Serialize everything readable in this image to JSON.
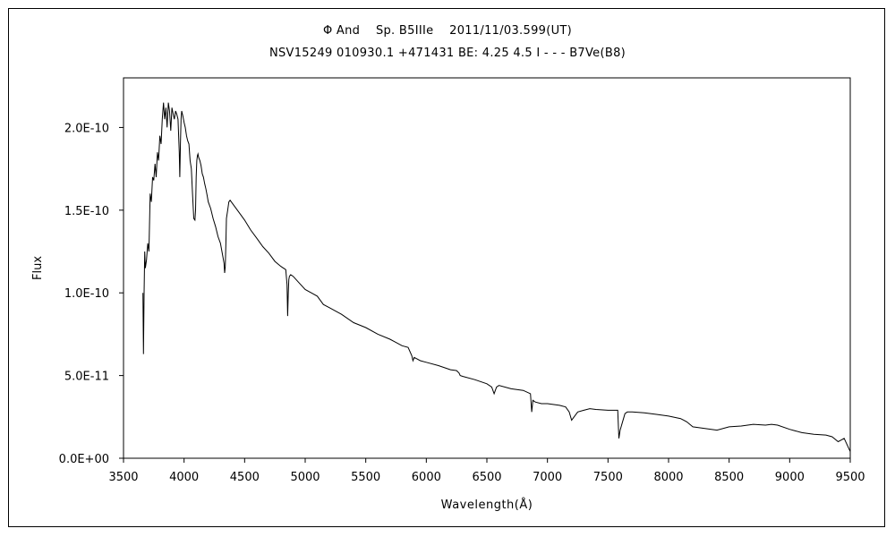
{
  "chart_data": {
    "type": "line",
    "title": "Φ And    Sp. B5IIIe    2011/11/03.599(UT)",
    "subtitle": "NSV15249 010930.1 +471431 BE: 4.25 4.5 I - - - B7Ve(B8)",
    "xlabel": "Wavelength(Å)",
    "ylabel": "Flux",
    "xlim": [
      3500,
      9500
    ],
    "ylim": [
      0,
      2.3e-10
    ],
    "x_ticks": [
      3500,
      4000,
      4500,
      5000,
      5500,
      6000,
      6500,
      7000,
      7500,
      8000,
      8500,
      9000,
      9500
    ],
    "x_tick_labels": [
      "3500",
      "4000",
      "4500",
      "5000",
      "5500",
      "6000",
      "6500",
      "7000",
      "7500",
      "8000",
      "8500",
      "9000",
      "9500"
    ],
    "y_ticks": [
      0,
      5e-11,
      1e-10,
      1.5e-10,
      2e-10
    ],
    "y_tick_labels": [
      "0.0E+00",
      "5.0E-11",
      "1.0E-10",
      "1.5E-10",
      "2.0E-10"
    ],
    "grid": false,
    "legend": "none",
    "series": [
      {
        "x": [
          3660,
          3665,
          3670,
          3675,
          3680,
          3690,
          3700,
          3710,
          3720,
          3730,
          3740,
          3750,
          3760,
          3770,
          3780,
          3790,
          3800,
          3810,
          3820,
          3830,
          3840,
          3850,
          3860,
          3870,
          3880,
          3890,
          3900,
          3910,
          3920,
          3930,
          3940,
          3950,
          3960,
          3965,
          3970,
          3975,
          3980,
          3990,
          4000,
          4010,
          4020,
          4030,
          4040,
          4050,
          4060,
          4070,
          4080,
          4090,
          4095,
          4100,
          4105,
          4110,
          4115,
          4120,
          4130,
          4140,
          4150,
          4160,
          4170,
          4180,
          4190,
          4200,
          4220,
          4240,
          4260,
          4280,
          4300,
          4320,
          4330,
          4335,
          4340,
          4345,
          4350,
          4360,
          4370,
          4380,
          4400,
          4450,
          4500,
          4550,
          4600,
          4650,
          4700,
          4750,
          4800,
          4840,
          4850,
          4855,
          4860,
          4865,
          4870,
          4880,
          4900,
          4950,
          5000,
          5050,
          5100,
          5150,
          5200,
          5300,
          5400,
          5500,
          5600,
          5700,
          5800,
          5850,
          5880,
          5890,
          5900,
          5950,
          6000,
          6100,
          6200,
          6250,
          6270,
          6280,
          6300,
          6400,
          6500,
          6540,
          6560,
          6580,
          6600,
          6700,
          6800,
          6860,
          6870,
          6880,
          6900,
          6950,
          7000,
          7100,
          7150,
          7180,
          7200,
          7220,
          7250,
          7300,
          7350,
          7400,
          7500,
          7580,
          7590,
          7600,
          7620,
          7640,
          7660,
          7700,
          7800,
          7900,
          8000,
          8100,
          8150,
          8200,
          8300,
          8400,
          8500,
          8600,
          8700,
          8800,
          8850,
          8900,
          9000,
          9100,
          9200,
          9300,
          9350,
          9400,
          9450,
          9500
        ],
        "y": [
          1e-10,
          6.3e-11,
          1e-10,
          1.25e-10,
          1.15e-10,
          1.2e-10,
          1.3e-10,
          1.25e-10,
          1.6e-10,
          1.55e-10,
          1.7e-10,
          1.68e-10,
          1.78e-10,
          1.7e-10,
          1.85e-10,
          1.8e-10,
          1.95e-10,
          1.9e-10,
          2.05e-10,
          2.15e-10,
          2.05e-10,
          2.12e-10,
          2e-10,
          2.15e-10,
          2.1e-10,
          1.98e-10,
          2.12e-10,
          2.08e-10,
          2.05e-10,
          2.1e-10,
          2.08e-10,
          2.05e-10,
          1.85e-10,
          1.7e-10,
          1.9e-10,
          2.05e-10,
          2.1e-10,
          2.07e-10,
          2.03e-10,
          2e-10,
          1.95e-10,
          1.92e-10,
          1.9e-10,
          1.8e-10,
          1.75e-10,
          1.6e-10,
          1.45e-10,
          1.44e-10,
          1.5e-10,
          1.7e-10,
          1.8e-10,
          1.83e-10,
          1.84e-10,
          1.82e-10,
          1.8e-10,
          1.77e-10,
          1.72e-10,
          1.7e-10,
          1.66e-10,
          1.63e-10,
          1.59e-10,
          1.55e-10,
          1.51e-10,
          1.45e-10,
          1.4e-10,
          1.34e-10,
          1.3e-10,
          1.22e-10,
          1.18e-10,
          1.12e-10,
          1.16e-10,
          1.3e-10,
          1.45e-10,
          1.5e-10,
          1.55e-10,
          1.56e-10,
          1.54e-10,
          1.49e-10,
          1.44e-10,
          1.38e-10,
          1.33e-10,
          1.28e-10,
          1.24e-10,
          1.19e-10,
          1.16e-10,
          1.14e-10,
          1.05e-10,
          8.6e-11,
          1e-10,
          1.08e-10,
          1.1e-10,
          1.11e-10,
          1.1e-10,
          1.06e-10,
          1.02e-10,
          1e-10,
          9.8e-11,
          9.3e-11,
          9.1e-11,
          8.7e-11,
          8.2e-11,
          7.9e-11,
          7.5e-11,
          7.2e-11,
          6.8e-11,
          6.7e-11,
          6.2e-11,
          5.9e-11,
          6.1e-11,
          5.9e-11,
          5.8e-11,
          5.6e-11,
          5.35e-11,
          5.3e-11,
          5.15e-11,
          5e-11,
          4.95e-11,
          4.75e-11,
          4.5e-11,
          4.3e-11,
          3.9e-11,
          4.3e-11,
          4.4e-11,
          4.2e-11,
          4.1e-11,
          3.9e-11,
          2.8e-11,
          3.5e-11,
          3.4e-11,
          3.3e-11,
          3.3e-11,
          3.2e-11,
          3.1e-11,
          2.8e-11,
          2.3e-11,
          2.5e-11,
          2.8e-11,
          2.9e-11,
          3e-11,
          2.95e-11,
          2.9e-11,
          2.9e-11,
          1.2e-11,
          1.7e-11,
          2.2e-11,
          2.7e-11,
          2.8e-11,
          2.8e-11,
          2.75e-11,
          2.65e-11,
          2.55e-11,
          2.4e-11,
          2.2e-11,
          1.9e-11,
          1.8e-11,
          1.7e-11,
          1.9e-11,
          1.95e-11,
          2.05e-11,
          2e-11,
          2.05e-11,
          2e-11,
          1.75e-11,
          1.55e-11,
          1.45e-11,
          1.4e-11,
          1.3e-11,
          1e-11,
          1.2e-11,
          4e-12
        ]
      }
    ]
  }
}
